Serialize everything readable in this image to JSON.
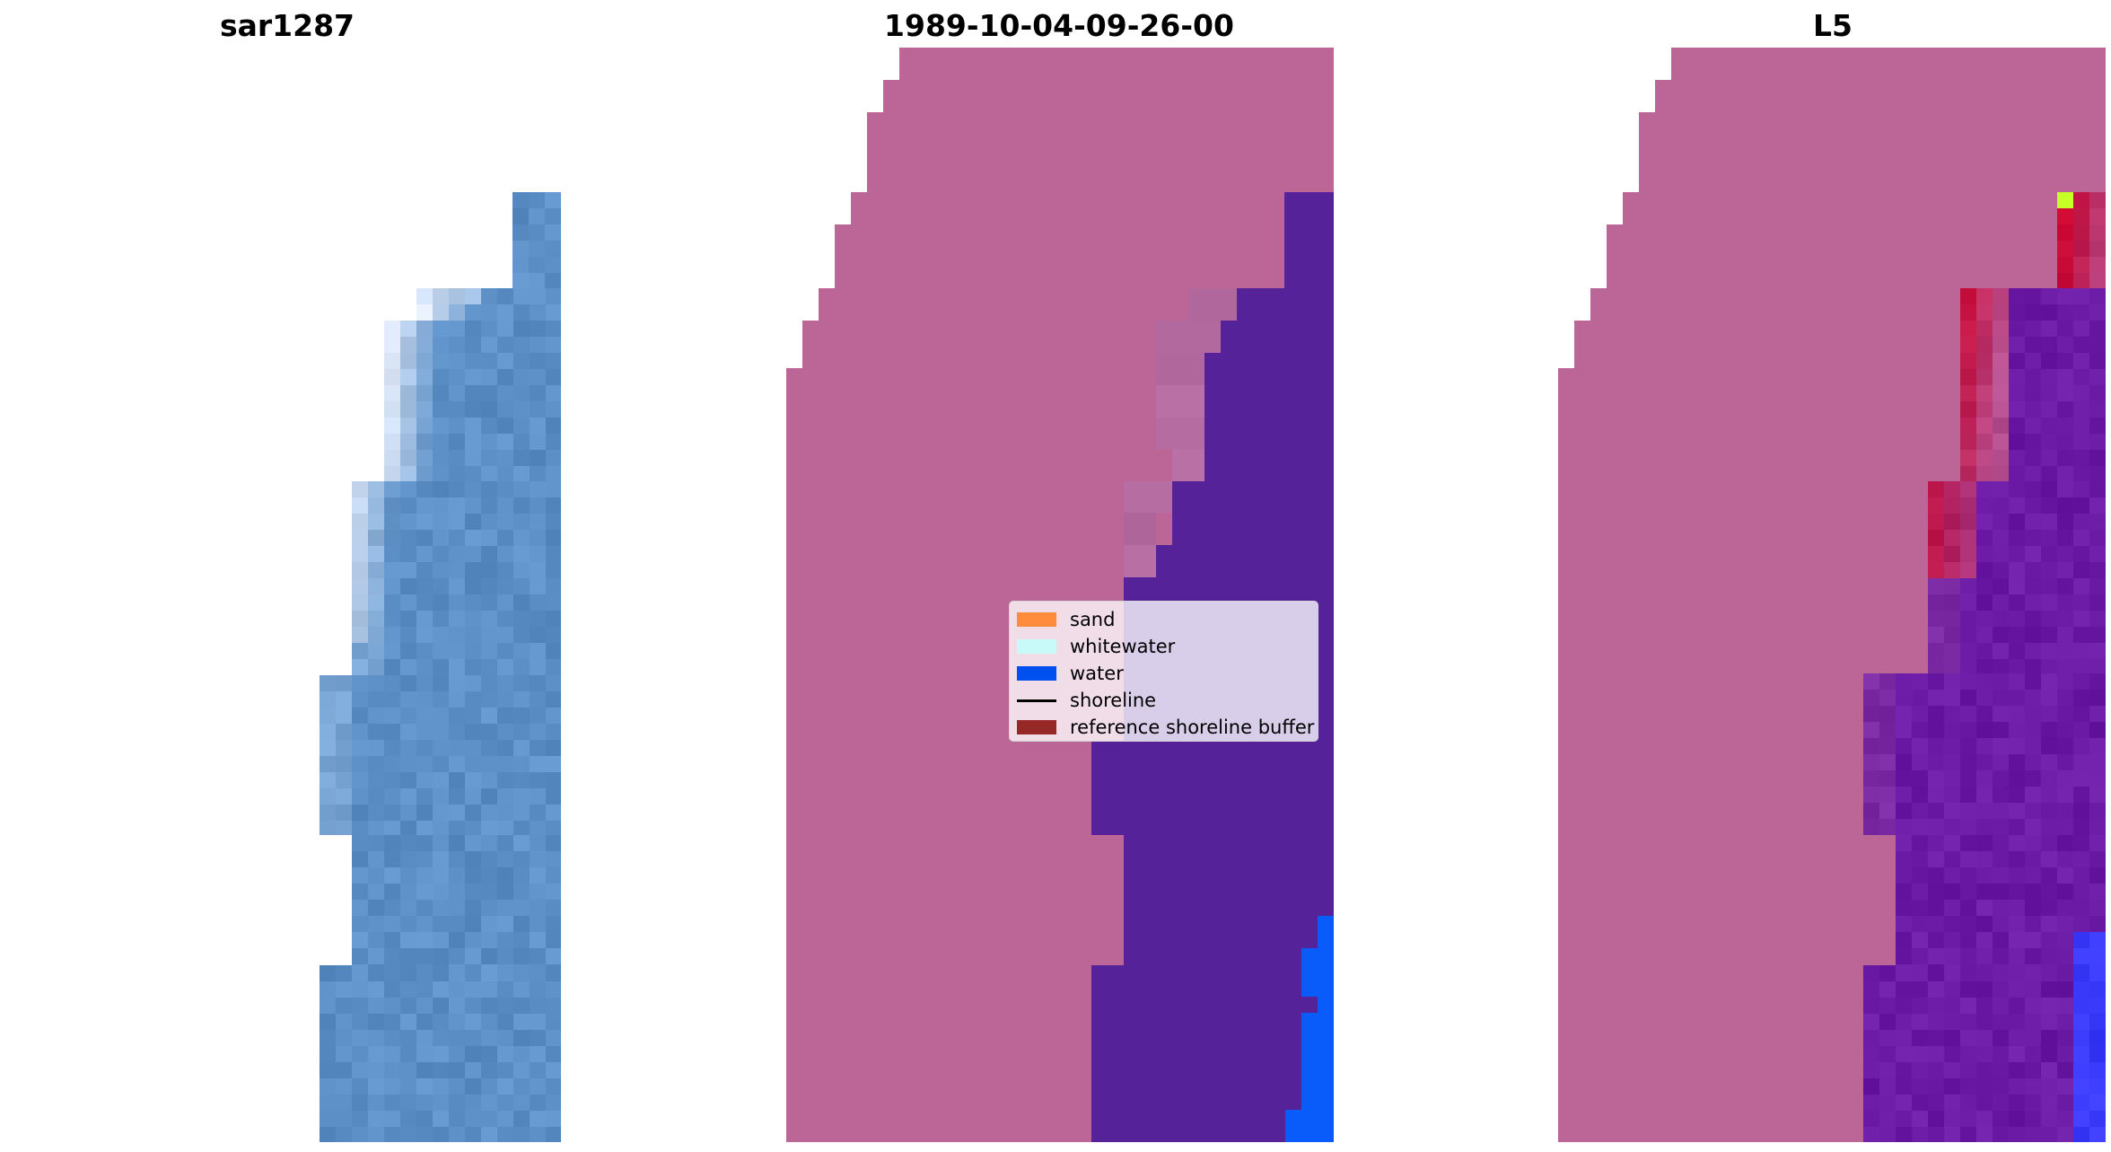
{
  "panels": [
    {
      "title": "sar1287"
    },
    {
      "title": "1989-10-04-09-26-00"
    },
    {
      "title": "L5"
    }
  ],
  "legend": {
    "items": [
      {
        "label": "sand",
        "kind": "patch",
        "color": "#ff8c3c"
      },
      {
        "label": "whitewater",
        "kind": "patch",
        "color": "#c8fafa"
      },
      {
        "label": "water",
        "kind": "patch",
        "color": "#0050f0"
      },
      {
        "label": "shoreline",
        "kind": "line",
        "color": "#000000"
      },
      {
        "label": "reference shoreline buffer",
        "kind": "patch",
        "color": "#962828"
      }
    ]
  },
  "colors": {
    "sand_overlay": "#bb6697",
    "water_overlay": "#55229a",
    "water_bright": "#0a5cfa",
    "mixed_overlay": "#b36a9e",
    "rgb_water": "#5b8fc6",
    "rgb_whitewater": "#e4ecfb",
    "l5_water": "#6b1aa6",
    "l5_red": "#c4103f"
  }
}
